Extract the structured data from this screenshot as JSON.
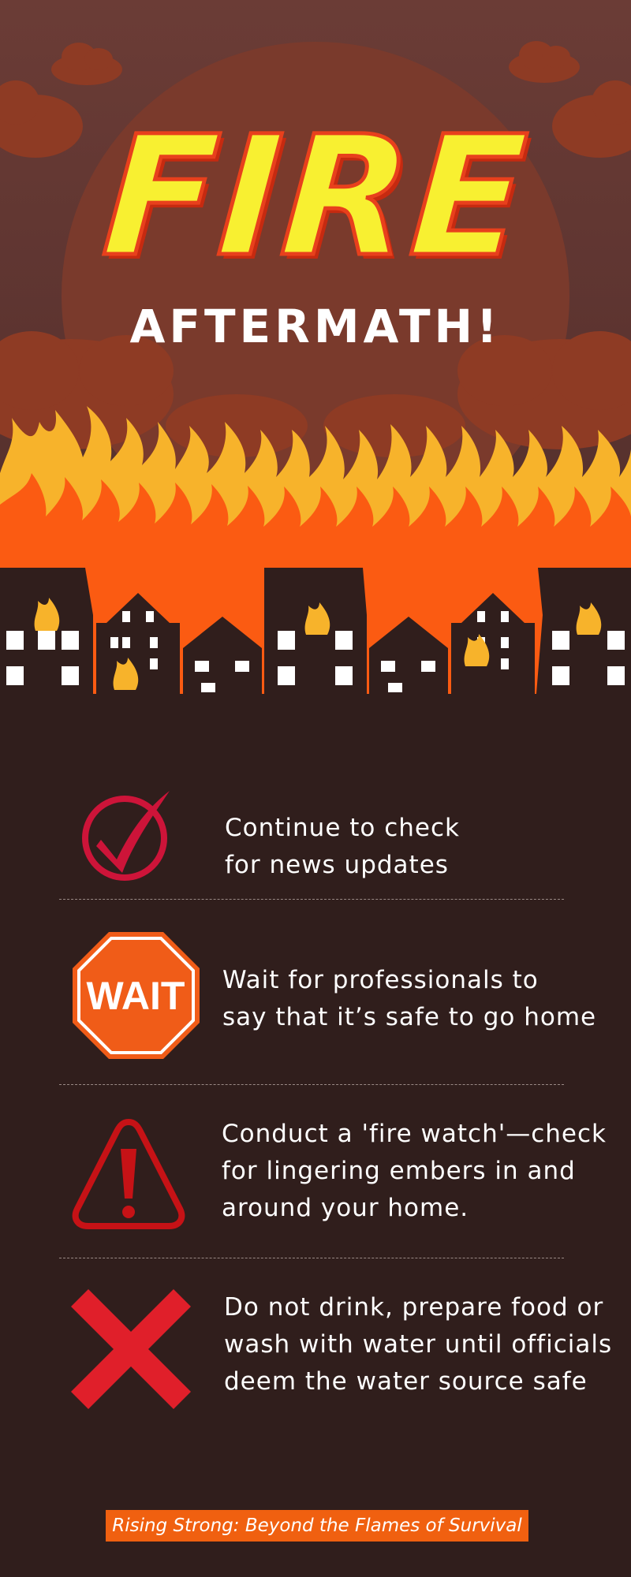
{
  "header": {
    "title": "FIRE",
    "subtitle": "AFTERMATH!"
  },
  "tips": [
    {
      "icon": "check-mark-icon",
      "text": "Continue to check\nfor news updates"
    },
    {
      "icon": "wait-stop-sign-icon",
      "icon_text": "WAIT",
      "text": "Wait for professionals to\nsay that it’s safe to go home"
    },
    {
      "icon": "warning-triangle-icon",
      "text": "Conduct a 'fire watch'—check\nfor lingering embers in and\naround your home."
    },
    {
      "icon": "x-mark-icon",
      "text": "Do not drink, prepare food or\nwash with water until officials\ndeem the water source safe"
    }
  ],
  "footer": {
    "tagline": "Rising Strong: Beyond the Flames of Survival"
  },
  "colors": {
    "background": "#301e1c",
    "title_yellow": "#f8f031",
    "flame_orange": "#fb5b12",
    "flame_yellow": "#f7b32b",
    "check_red": "#cd1439",
    "stop_orange": "#f05c18",
    "x_red": "#e01f2a",
    "tagline_bg": "#f06010"
  }
}
